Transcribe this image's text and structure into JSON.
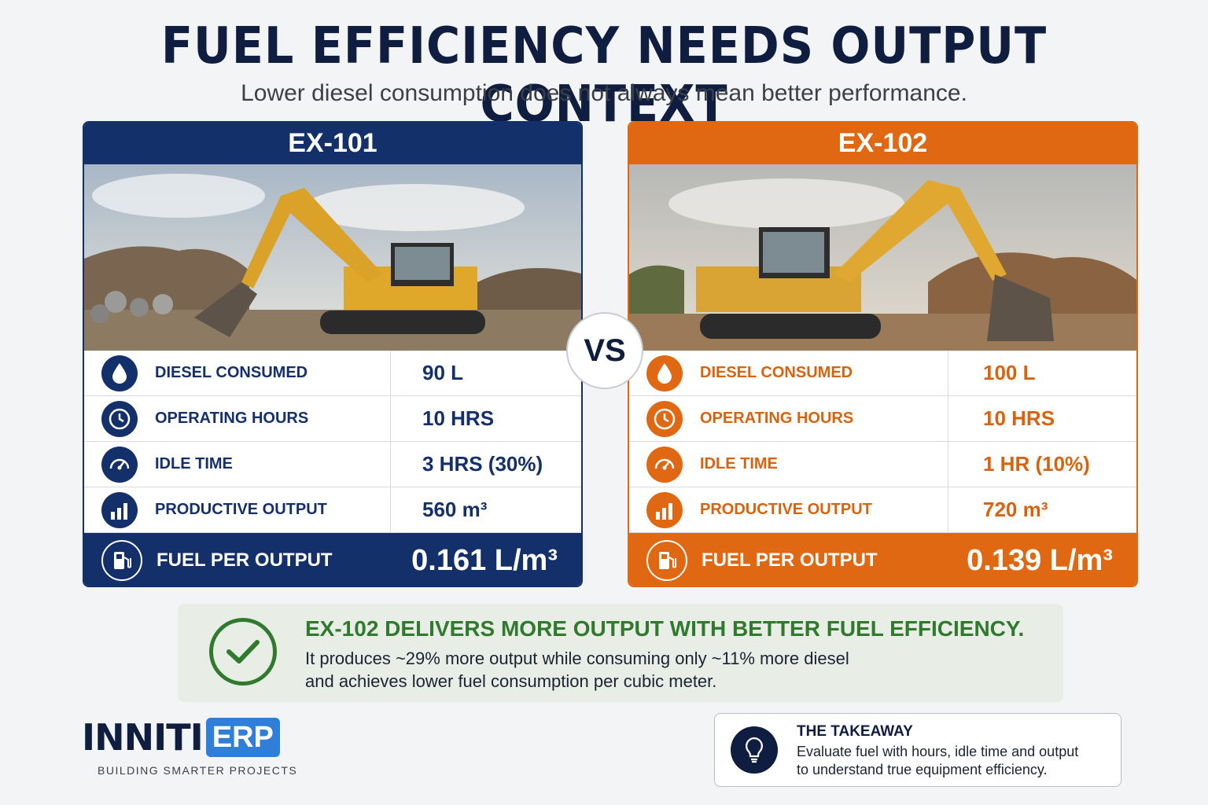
{
  "title": "FUEL EFFICIENCY NEEDS OUTPUT CONTEXT",
  "subtitle": "Lower diesel consumption does not always mean better performance.",
  "vs_label": "VS",
  "colors": {
    "navy": "#14306b",
    "orange": "#e06812",
    "green": "#2f7a2c",
    "erp_blue": "#2f7fd9"
  },
  "machines": [
    {
      "name": "EX-101",
      "rows": [
        {
          "icon": "drop-icon",
          "label": "DIESEL CONSUMED",
          "value": "90 L"
        },
        {
          "icon": "clock-icon",
          "label": "OPERATING HOURS",
          "value": "10 HRS"
        },
        {
          "icon": "gauge-icon",
          "label": "IDLE TIME",
          "value": "3 HRS (30%)"
        },
        {
          "icon": "bar-chart-icon",
          "label": "PRODUCTIVE OUTPUT",
          "value": "560 m³"
        }
      ],
      "footer": {
        "icon": "fuel-pump-icon",
        "label": "FUEL PER OUTPUT",
        "value": "0.161 L/m³"
      }
    },
    {
      "name": "EX-102",
      "rows": [
        {
          "icon": "drop-icon",
          "label": "DIESEL CONSUMED",
          "value": "100 L"
        },
        {
          "icon": "clock-icon",
          "label": "OPERATING HOURS",
          "value": "10 HRS"
        },
        {
          "icon": "gauge-icon",
          "label": "IDLE TIME",
          "value": "1 HR (10%)"
        },
        {
          "icon": "bar-chart-icon",
          "label": "PRODUCTIVE OUTPUT",
          "value": "720 m³"
        }
      ],
      "footer": {
        "icon": "fuel-pump-icon",
        "label": "FUEL PER OUTPUT",
        "value": "0.139 L/m³"
      }
    }
  ],
  "verdict": {
    "icon": "check-icon",
    "headline": "EX-102 DELIVERS MORE OUTPUT WITH BETTER FUEL EFFICIENCY.",
    "line1": "It produces ~29% more output while consuming only ~11% more diesel",
    "line2": "and achieves lower fuel consumption per cubic meter."
  },
  "logo": {
    "mark": "INNITI",
    "suffix": "ERP",
    "tagline": "BUILDING SMARTER PROJECTS"
  },
  "takeaway": {
    "icon": "lightbulb-icon",
    "heading": "THE TAKEAWAY",
    "line1": "Evaluate fuel with hours, idle time and output",
    "line2": "to understand true equipment efficiency."
  }
}
